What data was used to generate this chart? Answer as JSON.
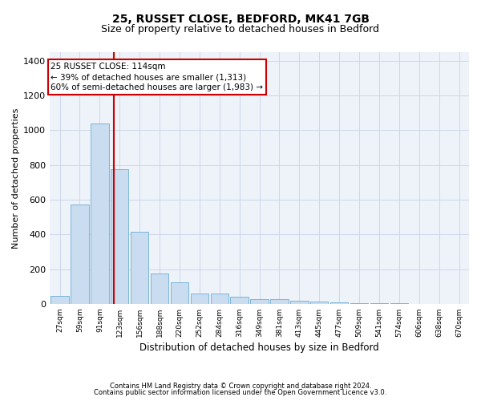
{
  "title1": "25, RUSSET CLOSE, BEDFORD, MK41 7GB",
  "title2": "Size of property relative to detached houses in Bedford",
  "xlabel": "Distribution of detached houses by size in Bedford",
  "ylabel": "Number of detached properties",
  "footnote1": "Contains HM Land Registry data © Crown copyright and database right 2024.",
  "footnote2": "Contains public sector information licensed under the Open Government Licence v3.0.",
  "categories": [
    "27sqm",
    "59sqm",
    "91sqm",
    "123sqm",
    "156sqm",
    "188sqm",
    "220sqm",
    "252sqm",
    "284sqm",
    "316sqm",
    "349sqm",
    "381sqm",
    "413sqm",
    "445sqm",
    "477sqm",
    "509sqm",
    "541sqm",
    "574sqm",
    "606sqm",
    "638sqm",
    "670sqm"
  ],
  "values": [
    45,
    570,
    1040,
    775,
    415,
    175,
    125,
    58,
    58,
    43,
    25,
    25,
    18,
    15,
    10,
    5,
    3,
    2,
    0,
    0,
    0
  ],
  "bar_color": "#c9dcf0",
  "bar_edge_color": "#6baed6",
  "vline_position": 2.72,
  "vline_color": "#cc0000",
  "annotation_text": "25 RUSSET CLOSE: 114sqm\n← 39% of detached houses are smaller (1,313)\n60% of semi-detached houses are larger (1,983) →",
  "annotation_box_color": "#cc0000",
  "ylim": [
    0,
    1450
  ],
  "yticks": [
    0,
    200,
    400,
    600,
    800,
    1000,
    1200,
    1400
  ],
  "grid_color": "#c8d4e8",
  "bg_color": "#eef2f9",
  "title1_fontsize": 10,
  "title2_fontsize": 9,
  "xlabel_fontsize": 8.5,
  "ylabel_fontsize": 8,
  "annot_fontsize": 7.5
}
